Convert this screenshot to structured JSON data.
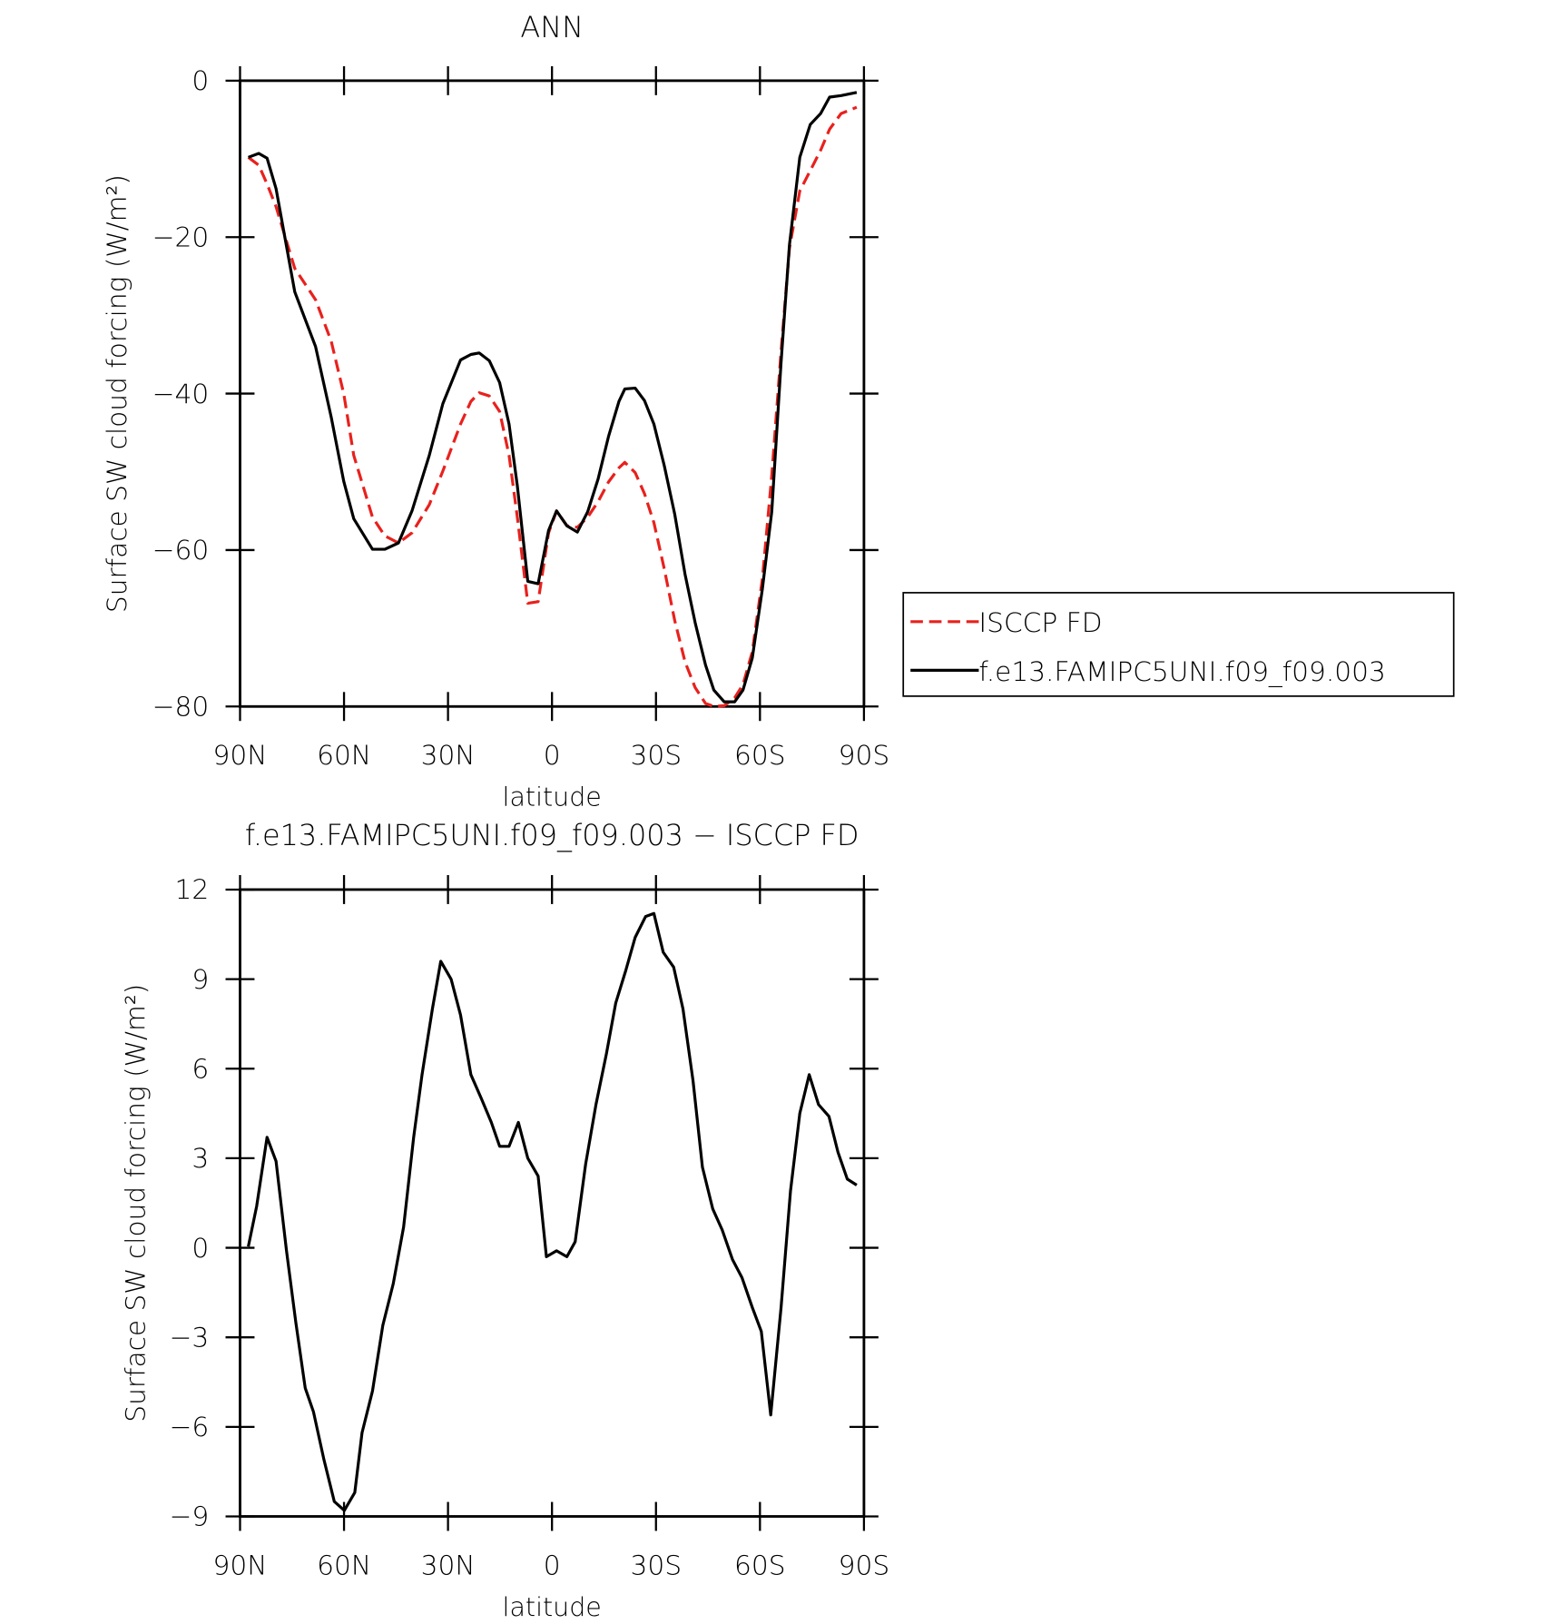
{
  "chart_data": [
    {
      "type": "line",
      "title": "ANN",
      "x_label": "latitude",
      "y_label": "Surface SW cloud forcing (W/m²)",
      "x": [
        87.6,
        84.6,
        82.2,
        79.6,
        74.2,
        68.2,
        63.7,
        60.1,
        57.2,
        51.8,
        48.2,
        44.3,
        40.4,
        35.4,
        31.5,
        26.4,
        23.4,
        21,
        18.1,
        15.1,
        12.4,
        10,
        7,
        4,
        1,
        -1.3,
        -4.3,
        -7.3,
        -10.3,
        -13.3,
        -16.3,
        -19.3,
        -21,
        -24,
        -26.7,
        -29.4,
        -32.4,
        -35.4,
        -38.4,
        -41.3,
        -44.3,
        -46.7,
        -49.7,
        -52.7,
        -55.1,
        -57.8,
        -60.7,
        -63.4,
        -66.1,
        -68.5,
        -71.5,
        -74.5,
        -77.5,
        -80.1,
        -83.4,
        -87.9
      ],
      "series": [
        {
          "name": "ISCCP FD",
          "color": "#e8211d",
          "dashed": true,
          "values": [
            -9.8,
            -10.8,
            -13.2,
            -16.1,
            -24,
            -28,
            -33.3,
            -40,
            -47.9,
            -55.8,
            -58.2,
            -59.1,
            -57.8,
            -54.2,
            -49.9,
            -43.9,
            -41,
            -39.9,
            -40.3,
            -42.3,
            -47.9,
            -55.8,
            -66.8,
            -66.6,
            -57.8,
            -55,
            -56.9,
            -57.1,
            -55.8,
            -53.8,
            -51.3,
            -49.5,
            -48.8,
            -50.1,
            -52.8,
            -56.5,
            -62.4,
            -69,
            -74.3,
            -77.6,
            -79.6,
            -80,
            -79.9,
            -78.9,
            -77.2,
            -73,
            -63.7,
            -50.5,
            -34.6,
            -21.4,
            -14.1,
            -11.5,
            -8.9,
            -6.2,
            -4.2,
            -3.4
          ]
        },
        {
          "name": "f.e13.FAMIPC5UNI.f09_f09.003",
          "color": "#000000",
          "dashed": false,
          "values": [
            -9.8,
            -9.3,
            -9.9,
            -13.8,
            -27,
            -34,
            -43,
            -51.2,
            -56,
            -59.9,
            -59.9,
            -59.1,
            -55,
            -47.9,
            -41.3,
            -35.7,
            -35,
            -34.8,
            -35.8,
            -38.6,
            -43.9,
            -51.8,
            -64,
            -64.3,
            -57.5,
            -55,
            -56.9,
            -57.7,
            -55.1,
            -50.9,
            -45.5,
            -41,
            -39.4,
            -39.3,
            -40.9,
            -43.9,
            -49.2,
            -55.4,
            -63.1,
            -69.3,
            -74.7,
            -77.9,
            -79.4,
            -79.4,
            -77.9,
            -73.8,
            -65,
            -55.1,
            -36,
            -21,
            -9.8,
            -5.6,
            -4.2,
            -2.1,
            -1.9,
            -1.5
          ]
        }
      ],
      "xlim": [
        90,
        -90
      ],
      "xticks": [
        {
          "value": 90,
          "label": "90N"
        },
        {
          "value": 60,
          "label": "60N"
        },
        {
          "value": 30,
          "label": "30N"
        },
        0,
        {
          "value": -30,
          "label": "30S"
        },
        {
          "value": -60,
          "label": "60S"
        },
        {
          "value": -90,
          "label": "90S"
        }
      ],
      "ylim": [
        -80,
        0
      ],
      "yticks": [
        0,
        {
          "value": -20,
          "label": "−20"
        },
        {
          "value": -40,
          "label": "−40"
        },
        {
          "value": -60,
          "label": "−60"
        },
        {
          "value": -80,
          "label": "−80"
        }
      ],
      "legend": "right"
    },
    {
      "type": "line",
      "title": "f.e13.FAMIPC5UNI.f09_f09.003 − ISCCP FD",
      "x_label": "latitude",
      "y_label": "Surface SW cloud forcing (W/m²)",
      "x": [
        87.6,
        85.2,
        82.2,
        79.6,
        76.6,
        73.9,
        71.2,
        68.8,
        65.8,
        62.8,
        59.9,
        56.9,
        54.8,
        51.8,
        48.8,
        45.8,
        42.8,
        39.9,
        37.5,
        34.5,
        32.1,
        29.1,
        26.4,
        23.4,
        20.4,
        17.5,
        15.1,
        12.4,
        9.7,
        7,
        4,
        1.6,
        -1.3,
        -4.3,
        -6.7,
        -9.7,
        -12.7,
        -15.7,
        -18.4,
        -21.3,
        -24,
        -27,
        -29.4,
        -32.1,
        -35.1,
        -37.8,
        -40.7,
        -43.4,
        -46.4,
        -49.1,
        -52.1,
        -54.8,
        -57.8,
        -60.4,
        -63.1,
        -66.1,
        -68.8,
        -71.5,
        -74.2,
        -76.9,
        -79.9,
        -82.5,
        -85.2,
        -87.9
      ],
      "series": [
        {
          "color": "#000000",
          "dashed": false,
          "values": [
            0.04,
            1.4,
            3.7,
            2.9,
            -0.1,
            -2.5,
            -4.7,
            -5.5,
            -7.1,
            -8.5,
            -8.8,
            -8.2,
            -6.2,
            -4.8,
            -2.6,
            -1.2,
            0.7,
            3.7,
            5.8,
            8,
            9.6,
            9,
            7.8,
            5.8,
            5,
            4.2,
            3.4,
            3.4,
            4.2,
            3,
            2.4,
            -0.3,
            -0.1,
            -0.3,
            0.2,
            2.8,
            4.8,
            6.5,
            8.2,
            9.3,
            10.4,
            11.1,
            11.2,
            9.9,
            9.4,
            8,
            5.6,
            2.7,
            1.3,
            0.6,
            -0.4,
            -1,
            -2,
            -2.8,
            -5.6,
            -2,
            1.9,
            4.5,
            5.8,
            4.8,
            4.4,
            3.2,
            2.3,
            2.1
          ]
        }
      ],
      "xlim": [
        90,
        -90
      ],
      "xticks": [
        {
          "value": 90,
          "label": "90N"
        },
        {
          "value": 60,
          "label": "60N"
        },
        {
          "value": 30,
          "label": "30N"
        },
        0,
        {
          "value": -30,
          "label": "30S"
        },
        {
          "value": -60,
          "label": "60S"
        },
        {
          "value": -90,
          "label": "90S"
        }
      ],
      "ylim": [
        -9,
        12
      ],
      "yticks": [
        12,
        9,
        6,
        3,
        0,
        {
          "value": -3,
          "label": "−3"
        },
        {
          "value": -6,
          "label": "−6"
        },
        {
          "value": -9,
          "label": "−9"
        }
      ]
    }
  ]
}
